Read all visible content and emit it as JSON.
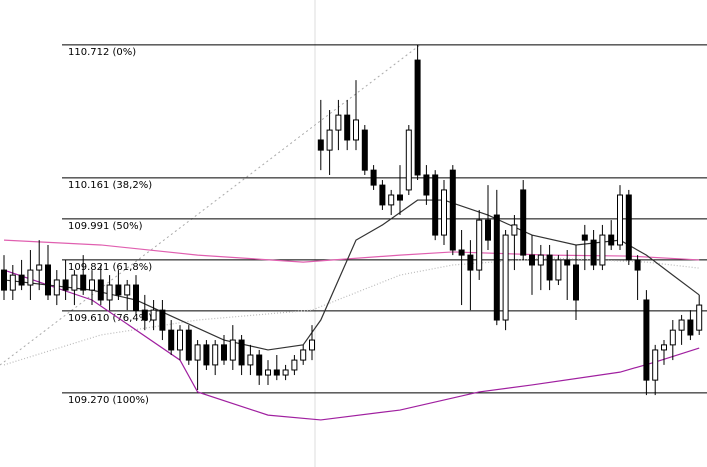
{
  "chart_data": {
    "type": "candlestick",
    "ylim": [
      108.963,
      110.898
    ],
    "up_color": "#ffffff",
    "down_color": "#000000",
    "levels": [
      {
        "value": 110.712,
        "label": "110.712 (0%)"
      },
      {
        "value": 110.161,
        "label": "110.161 (38,2%)"
      },
      {
        "value": 109.991,
        "label": "109.991 (50%)"
      },
      {
        "value": 109.821,
        "label": "109.821 (61,8%)"
      },
      {
        "value": 109.61,
        "label": "109.610 (76,4%)"
      },
      {
        "value": 109.27,
        "label": "109.270 (100%)"
      }
    ],
    "candles": [
      [
        109.779,
        109.841,
        109.655,
        109.696
      ],
      [
        109.696,
        109.8,
        109.655,
        109.758
      ],
      [
        109.758,
        109.821,
        109.696,
        109.717
      ],
      [
        109.717,
        109.862,
        109.655,
        109.779
      ],
      [
        109.779,
        109.903,
        109.696,
        109.8
      ],
      [
        109.8,
        109.883,
        109.655,
        109.676
      ],
      [
        109.676,
        109.779,
        109.634,
        109.738
      ],
      [
        109.738,
        109.821,
        109.655,
        109.696
      ],
      [
        109.696,
        109.779,
        109.634,
        109.758
      ],
      [
        109.758,
        109.841,
        109.676,
        109.696
      ],
      [
        109.696,
        109.779,
        109.634,
        109.738
      ],
      [
        109.738,
        109.8,
        109.634,
        109.655
      ],
      [
        109.655,
        109.758,
        109.613,
        109.717
      ],
      [
        109.717,
        109.779,
        109.655,
        109.676
      ],
      [
        109.676,
        109.738,
        109.613,
        109.717
      ],
      [
        109.717,
        109.758,
        109.593,
        109.613
      ],
      [
        109.613,
        109.676,
        109.53,
        109.572
      ],
      [
        109.572,
        109.655,
        109.53,
        109.613
      ],
      [
        109.613,
        109.655,
        109.489,
        109.53
      ],
      [
        109.53,
        109.572,
        109.427,
        109.448
      ],
      [
        109.448,
        109.551,
        109.406,
        109.53
      ],
      [
        109.53,
        109.551,
        109.386,
        109.406
      ],
      [
        109.406,
        109.489,
        109.282,
        109.469
      ],
      [
        109.469,
        109.489,
        109.365,
        109.386
      ],
      [
        109.386,
        109.489,
        109.344,
        109.469
      ],
      [
        109.469,
        109.51,
        109.386,
        109.406
      ],
      [
        109.406,
        109.551,
        109.365,
        109.489
      ],
      [
        109.489,
        109.51,
        109.344,
        109.386
      ],
      [
        109.386,
        109.469,
        109.344,
        109.427
      ],
      [
        109.427,
        109.448,
        109.303,
        109.344
      ],
      [
        109.344,
        109.406,
        109.303,
        109.365
      ],
      [
        109.365,
        109.427,
        109.323,
        109.344
      ],
      [
        109.344,
        109.386,
        109.323,
        109.365
      ],
      [
        109.365,
        109.427,
        109.344,
        109.406
      ],
      [
        109.406,
        109.469,
        109.386,
        109.448
      ],
      [
        109.448,
        109.551,
        109.406,
        109.489
      ],
      [
        110.318,
        110.484,
        110.193,
        110.276
      ],
      [
        110.276,
        110.442,
        110.173,
        110.359
      ],
      [
        110.359,
        110.484,
        110.276,
        110.421
      ],
      [
        110.421,
        110.484,
        110.276,
        110.318
      ],
      [
        110.318,
        110.566,
        110.276,
        110.401
      ],
      [
        110.359,
        110.38,
        110.173,
        110.193
      ],
      [
        110.193,
        110.214,
        110.111,
        110.131
      ],
      [
        110.131,
        110.152,
        110.028,
        110.049
      ],
      [
        110.049,
        110.111,
        110.007,
        110.09
      ],
      [
        110.09,
        110.214,
        110.007,
        110.069
      ],
      [
        110.111,
        110.38,
        110.09,
        110.359
      ],
      [
        110.649,
        110.712,
        110.152,
        110.173
      ],
      [
        110.173,
        110.214,
        110.049,
        110.09
      ],
      [
        110.173,
        110.193,
        109.903,
        109.924
      ],
      [
        109.924,
        110.152,
        109.883,
        110.111
      ],
      [
        110.193,
        110.214,
        109.841,
        109.862
      ],
      [
        109.862,
        109.945,
        109.634,
        109.841
      ],
      [
        109.841,
        109.903,
        109.613,
        109.779
      ],
      [
        109.779,
        110.028,
        109.738,
        109.986
      ],
      [
        109.986,
        110.131,
        109.862,
        109.903
      ],
      [
        110.007,
        110.111,
        109.551,
        109.572
      ],
      [
        109.572,
        109.945,
        109.53,
        109.924
      ],
      [
        109.924,
        110.007,
        109.779,
        109.966
      ],
      [
        110.111,
        110.152,
        109.821,
        109.841
      ],
      [
        109.841,
        109.924,
        109.676,
        109.8
      ],
      [
        109.8,
        109.883,
        109.696,
        109.841
      ],
      [
        109.841,
        109.883,
        109.696,
        109.738
      ],
      [
        109.738,
        109.841,
        109.717,
        109.821
      ],
      [
        109.821,
        109.862,
        109.655,
        109.8
      ],
      [
        109.8,
        109.883,
        109.572,
        109.655
      ],
      [
        109.924,
        109.966,
        109.779,
        109.903
      ],
      [
        109.903,
        109.945,
        109.779,
        109.8
      ],
      [
        109.8,
        109.966,
        109.779,
        109.924
      ],
      [
        109.924,
        109.986,
        109.862,
        109.883
      ],
      [
        109.883,
        110.131,
        109.862,
        110.09
      ],
      [
        110.09,
        110.111,
        109.8,
        109.821
      ],
      [
        109.821,
        109.841,
        109.655,
        109.779
      ],
      [
        109.655,
        109.696,
        109.261,
        109.323
      ],
      [
        109.323,
        109.469,
        109.261,
        109.448
      ],
      [
        109.448,
        109.489,
        109.386,
        109.469
      ],
      [
        109.469,
        109.572,
        109.406,
        109.53
      ],
      [
        109.53,
        109.593,
        109.469,
        109.572
      ],
      [
        109.572,
        109.613,
        109.489,
        109.51
      ],
      [
        109.53,
        109.676,
        109.51,
        109.634
      ]
    ],
    "series": [
      {
        "color": "#bbbbbb",
        "style": "dotted",
        "x": [
          0,
          11,
          22,
          35,
          45,
          51,
          62,
          73,
          79
        ],
        "values": [
          109.386,
          109.51,
          109.572,
          109.613,
          109.758,
          109.8,
          109.829,
          109.812,
          109.787
        ]
      },
      {
        "color": "#e060b0",
        "style": "solid",
        "x": [
          0,
          11,
          22,
          34,
          45,
          51,
          62,
          71,
          79
        ],
        "values": [
          109.903,
          109.883,
          109.841,
          109.812,
          109.841,
          109.854,
          109.841,
          109.837,
          109.821
        ]
      },
      {
        "color": "#a020a0",
        "style": "solid",
        "x": [
          0,
          10,
          20,
          22,
          30,
          36,
          45,
          54,
          60,
          70,
          74,
          79
        ],
        "values": [
          109.779,
          109.655,
          109.406,
          109.274,
          109.178,
          109.158,
          109.199,
          109.274,
          109.303,
          109.356,
          109.398,
          109.456
        ]
      },
      {
        "color": "#333333",
        "style": "solid",
        "x": [
          0,
          10,
          15,
          20,
          25,
          30,
          34,
          36,
          40,
          43,
          47,
          50,
          55,
          60,
          65,
          70,
          73,
          76,
          79
        ],
        "values": [
          109.738,
          109.696,
          109.655,
          109.572,
          109.489,
          109.448,
          109.469,
          109.572,
          109.903,
          109.966,
          110.069,
          110.069,
          110.007,
          109.924,
          109.883,
          109.903,
          109.841,
          109.758,
          109.676
        ]
      }
    ]
  }
}
